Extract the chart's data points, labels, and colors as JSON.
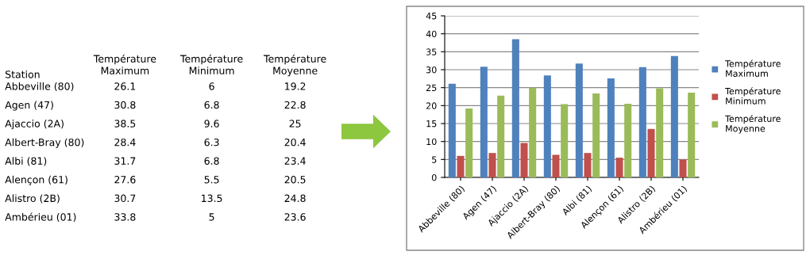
{
  "chart_data": [
    {
      "type": "other",
      "annotations": [
        "Station",
        "Température Maximum",
        "Température Minimum",
        "Température Moyenne",
        "Abbeville (80)",
        "26.1",
        "6",
        "19.2",
        "Agen (47)",
        "30.8",
        "6.8",
        "22.8",
        "Ajaccio (2A)",
        "38.5",
        "9.6",
        "25",
        "Albert-Bray (80)",
        "28.4",
        "6.3",
        "20.4",
        "Albi (81)",
        "31.7",
        "6.8",
        "23.4",
        "Alençon (61)",
        "27.6",
        "5.5",
        "20.5",
        "Alistro (2B)",
        "30.7",
        "13.5",
        "24.8",
        "Ambérieu (01)",
        "33.8",
        "5",
        "23.6"
      ]
    },
    {
      "type": "bar",
      "categories": [
        "Abbeville (80)",
        "Agen (47)",
        "Ajaccio (2A)",
        "Albert-Bray (80)",
        "Albi (81)",
        "Alençon (61)",
        "Alistro (2B)",
        "Ambérieu (01)"
      ],
      "series": [
        {
          "name": "Température Maximum",
          "color": "#4f81bd",
          "values": [
            26.1,
            30.8,
            38.5,
            28.4,
            31.7,
            27.6,
            30.7,
            33.8
          ]
        },
        {
          "name": "Température Minimum",
          "color": "#c0504d",
          "values": [
            6,
            6.8,
            9.6,
            6.3,
            6.8,
            5.5,
            13.5,
            5
          ]
        },
        {
          "name": "Température Moyenne",
          "color": "#9bbb59",
          "values": [
            19.2,
            22.8,
            25,
            20.4,
            23.4,
            20.5,
            24.8,
            23.6
          ]
        }
      ],
      "ylim": [
        0,
        45
      ],
      "yticks": [
        0,
        5,
        10,
        15,
        20,
        25,
        30,
        35,
        40,
        45
      ],
      "grid": "y",
      "legend": "right"
    }
  ]
}
